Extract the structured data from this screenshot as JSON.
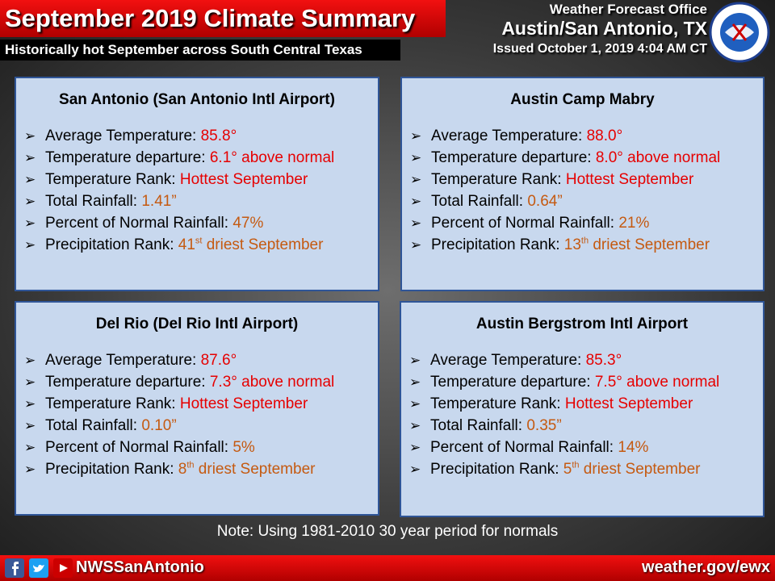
{
  "header": {
    "title": "September 2019 Climate Summary",
    "subtitle": "Historically hot September across South Central Texas",
    "office": "Weather Forecast Office",
    "location": "Austin/San Antonio, TX",
    "issued": "Issued October 1, 2019 4:04 AM CT"
  },
  "panels": [
    {
      "title": "San Antonio (San Antonio Intl Airport)",
      "items": [
        {
          "label": "Average Temperature: ",
          "value": "85.8°"
        },
        {
          "label": "Temperature departure: ",
          "value": "6.1° above normal"
        },
        {
          "label": "Temperature Rank: ",
          "value": "Hottest September"
        },
        {
          "label": "Total Rainfall: ",
          "value": "1.41”"
        },
        {
          "label": "Percent of Normal Rainfall: ",
          "value": "47%"
        },
        {
          "label": "Precipitation Rank: ",
          "value": "41",
          "sup": "st",
          "rest": " driest September"
        }
      ]
    },
    {
      "title": "Austin Camp Mabry",
      "items": [
        {
          "label": "Average Temperature: ",
          "value": "88.0°"
        },
        {
          "label": "Temperature departure: ",
          "value": "8.0° above normal"
        },
        {
          "label": "Temperature Rank: ",
          "value": "Hottest September"
        },
        {
          "label": "Total Rainfall: ",
          "value": "0.64”"
        },
        {
          "label": "Percent of Normal Rainfall: ",
          "value": "21%"
        },
        {
          "label": "Precipitation Rank: ",
          "value": "13",
          "sup": "th",
          "rest": " driest September"
        }
      ]
    },
    {
      "title": "Del Rio (Del Rio Intl Airport)",
      "items": [
        {
          "label": "Average Temperature: ",
          "value": "87.6°"
        },
        {
          "label": "Temperature departure: ",
          "value": "7.3° above normal"
        },
        {
          "label": "Temperature Rank: ",
          "value": "Hottest September"
        },
        {
          "label": "Total Rainfall: ",
          "value": "0.10”"
        },
        {
          "label": "Percent of Normal Rainfall: ",
          "value": "5%"
        },
        {
          "label": "Precipitation Rank: ",
          "value": "8",
          "sup": "th",
          "rest": " driest September"
        }
      ]
    },
    {
      "title": "Austin Bergstrom Intl Airport",
      "items": [
        {
          "label": "Average Temperature: ",
          "value": "85.3°"
        },
        {
          "label": "Temperature departure: ",
          "value": "7.5° above normal"
        },
        {
          "label": "Temperature Rank: ",
          "value": "Hottest September"
        },
        {
          "label": "Total Rainfall: ",
          "value": "0.35”"
        },
        {
          "label": "Percent of Normal Rainfall: ",
          "value": "14%"
        },
        {
          "label": "Precipitation Rank: ",
          "value": "5",
          "sup": "th",
          "rest": " driest September"
        }
      ]
    }
  ],
  "note": "Note: Using 1981-2010 30 year period for normals",
  "footer": {
    "handle": "NWSSanAntonio",
    "url": "weather.gov/ewx"
  }
}
